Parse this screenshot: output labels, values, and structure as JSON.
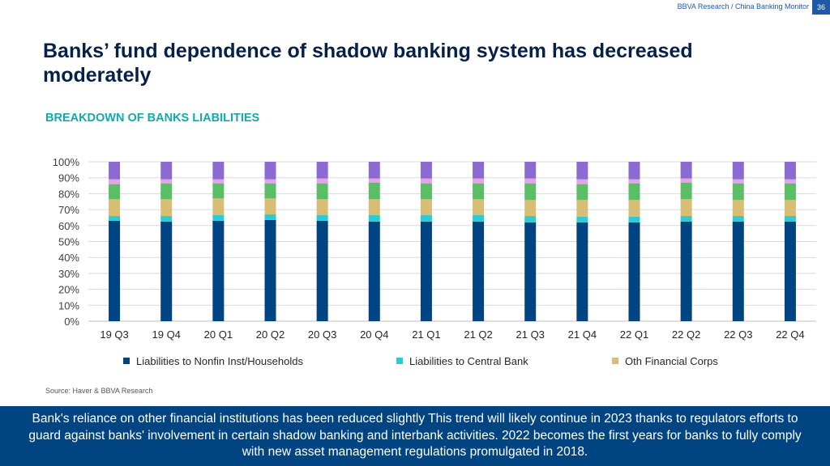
{
  "header": {
    "note": "BBVA Research / China Banking Monitor",
    "page_number": "36"
  },
  "title": "Banks’ fund dependence of shadow banking system has decreased moderately",
  "subtitle": "BREAKDOWN OF BANKS LIABILITIES",
  "source": "Source: Haver & BBVA Research",
  "footer_text": "Bank's reliance on other financial institutions has been reduced slightly This trend will likely continue in 2023 thanks to regulators efforts to guard against banks' involvement in certain shadow banking and interbank activities. 2022 becomes the first years for banks to fully comply with new asset management regulations promulgated in 2018.",
  "chart_data": {
    "type": "bar",
    "stacked": true,
    "categories": [
      "19 Q3",
      "19 Q4",
      "20 Q1",
      "20 Q2",
      "20 Q3",
      "20 Q4",
      "21 Q1",
      "21 Q2",
      "21 Q3",
      "21 Q4",
      "22 Q1",
      "22 Q2",
      "22 Q3",
      "22 Q4"
    ],
    "ylim": [
      0,
      100
    ],
    "yticks": [
      "0%",
      "10%",
      "20%",
      "30%",
      "40%",
      "50%",
      "60%",
      "70%",
      "80%",
      "90%",
      "100%"
    ],
    "grid": true,
    "legend_position": "bottom",
    "series": [
      {
        "name": "Liabilities to Nonfin Inst/Households",
        "color": "#004481",
        "values": [
          63,
          62.5,
          63,
          63.5,
          63,
          62.5,
          62.5,
          62.5,
          62,
          62,
          62,
          62.5,
          62.5,
          62.5
        ],
        "in_legend": true
      },
      {
        "name": "Liabilities to Central Bank",
        "color": "#2dccd3",
        "values": [
          3,
          3.5,
          3.5,
          3.5,
          3.5,
          4,
          4,
          4,
          4,
          3.5,
          3.5,
          3.5,
          3.5,
          3.5
        ],
        "in_legend": true
      },
      {
        "name": "Oth Financial Corps",
        "color": "#d8be75",
        "values": [
          10.5,
          10.5,
          10.5,
          10,
          10,
          10,
          10,
          10,
          10,
          10.5,
          10.5,
          10.5,
          10,
          10
        ],
        "in_legend": true
      },
      {
        "name": "",
        "color": "#5bbe67",
        "values": [
          9.5,
          10,
          9.5,
          9.5,
          10,
          10.5,
          10,
          10,
          10.5,
          10,
          10.5,
          10.5,
          10.5,
          10.5
        ],
        "in_legend": false
      },
      {
        "name": "",
        "color": "#e6a4e7",
        "values": [
          3,
          2.5,
          2.5,
          2.5,
          3,
          2.5,
          3,
          3,
          3,
          3,
          2.5,
          2.5,
          2.5,
          2.5
        ],
        "in_legend": false
      },
      {
        "name": "",
        "color": "#8a6bd1",
        "values": [
          11,
          11,
          11,
          11,
          10.5,
          10.5,
          10.5,
          10.5,
          10.5,
          11,
          11,
          10.5,
          11,
          11
        ],
        "in_legend": false
      }
    ]
  }
}
